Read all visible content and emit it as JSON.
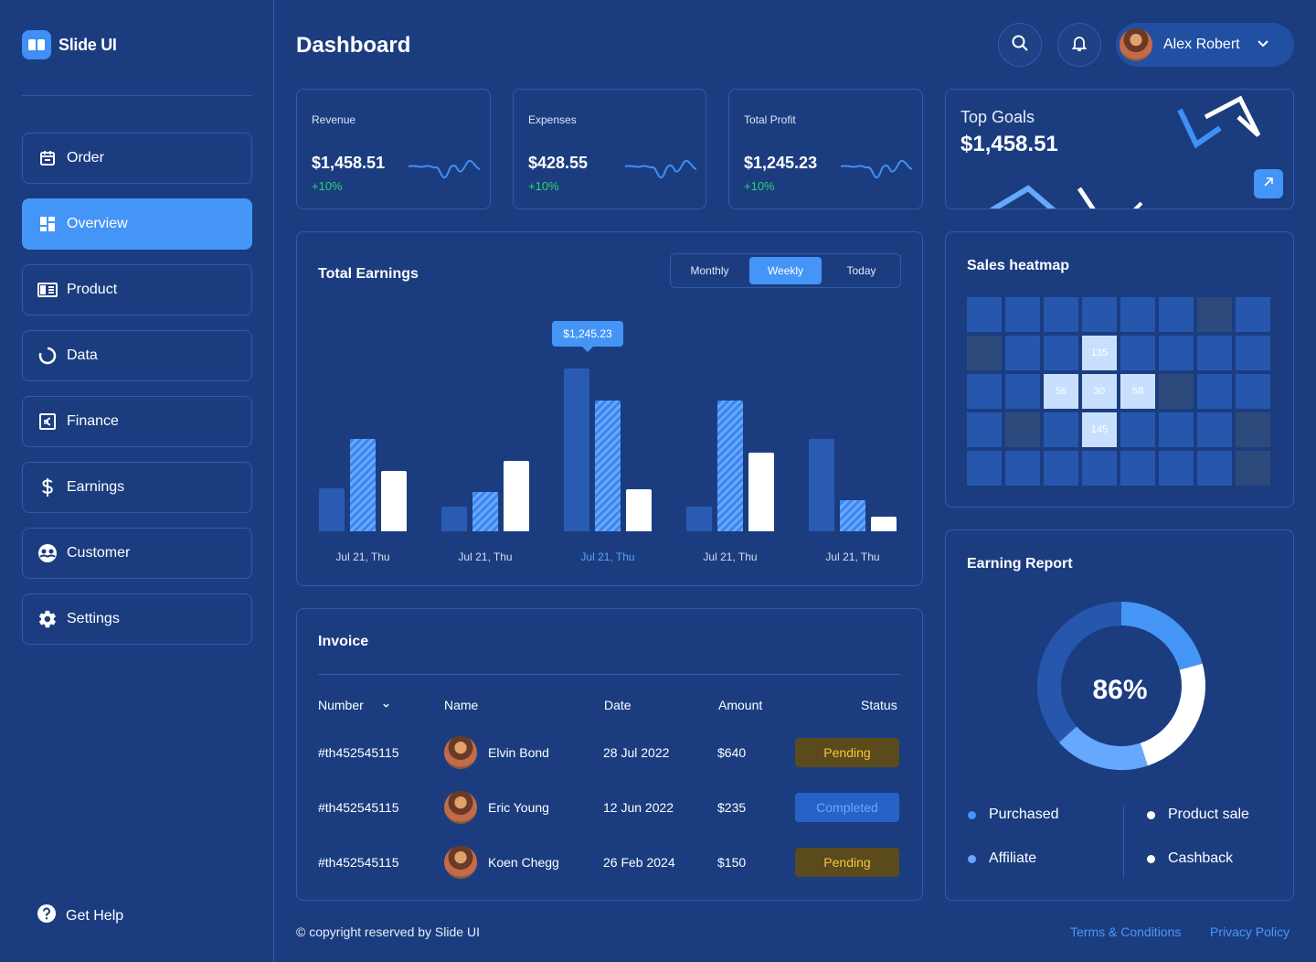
{
  "app": {
    "name": "Slide UI",
    "page_title": "Dashboard"
  },
  "sidebar": {
    "items": [
      {
        "label": "Order",
        "icon": "calendar-icon"
      },
      {
        "label": "Overview",
        "icon": "grid-icon",
        "active": true
      },
      {
        "label": "Product",
        "icon": "product-icon"
      },
      {
        "label": "Data",
        "icon": "chart-ring-icon"
      },
      {
        "label": "Finance",
        "icon": "euro-icon"
      },
      {
        "label": "Earnings",
        "icon": "dollar-icon"
      },
      {
        "label": "Customer",
        "icon": "customer-icon"
      },
      {
        "label": "Settings",
        "icon": "gear-icon"
      }
    ],
    "help_label": "Get Help"
  },
  "header": {
    "user_name": "Alex Robert"
  },
  "stats": [
    {
      "label": "Revenue",
      "value": "$1,458.51",
      "change": "+10%"
    },
    {
      "label": "Expenses",
      "value": "$428.55",
      "change": "+10%"
    },
    {
      "label": "Total Profit",
      "value": "$1,245.23",
      "change": "+10%"
    }
  ],
  "goals": {
    "title": "Top Goals",
    "value": "$1,458.51"
  },
  "earnings": {
    "title": "Total Earnings",
    "tabs": [
      "Monthly",
      "Weekly",
      "Today"
    ],
    "active_tab": "Weekly",
    "tooltip": "$1,245.23"
  },
  "chart_data": {
    "type": "bar",
    "title": "Total Earnings",
    "categories": [
      "Jul 21, Thu",
      "Jul 21, Thu",
      "Jul 21, Thu",
      "Jul 21, Thu",
      "Jul 21, Thu"
    ],
    "highlight_index": 2,
    "series": [
      {
        "name": "series-1",
        "values": [
          47,
          27,
          178,
          27,
          101
        ]
      },
      {
        "name": "series-2",
        "values": [
          101,
          43,
          143,
          143,
          34
        ]
      },
      {
        "name": "series-3",
        "values": [
          66,
          77,
          46,
          86,
          16
        ]
      }
    ],
    "ylim": [
      0,
      200
    ]
  },
  "heatmap": {
    "title": "Sales heatmap",
    "rows": [
      [
        "m",
        "m",
        "m",
        "m",
        "m",
        "m",
        "d",
        "m"
      ],
      [
        "d",
        "m",
        "m",
        "l:135",
        "m",
        "m",
        "m",
        "m"
      ],
      [
        "m",
        "m",
        "l:56",
        "l:30",
        "l:58",
        "d",
        "m",
        "m"
      ],
      [
        "m",
        "d",
        "m",
        "l:145",
        "m",
        "m",
        "m",
        "d"
      ],
      [
        "m",
        "m",
        "m",
        "m",
        "m",
        "m",
        "m",
        "d"
      ]
    ]
  },
  "invoice": {
    "title": "Invoice",
    "columns": [
      "Number",
      "Name",
      "Date",
      "Amount",
      "Status"
    ],
    "rows": [
      {
        "number": "#th452545115",
        "name": "Elvin Bond",
        "date": "28 Jul 2022",
        "amount": "$640",
        "status": "Pending"
      },
      {
        "number": "#th452545115",
        "name": "Eric Young",
        "date": "12 Jun 2022",
        "amount": "$235",
        "status": "Completed"
      },
      {
        "number": "#th452545115",
        "name": "Koen Chegg",
        "date": "26 Feb 2024",
        "amount": "$150",
        "status": "Pending"
      }
    ]
  },
  "report": {
    "title": "Earning Report",
    "percent": "86%",
    "legend": [
      {
        "label": "Purchased",
        "color": "#4595f7"
      },
      {
        "label": "Product sale",
        "color": "#ffffff"
      },
      {
        "label": "Affiliate",
        "color": "#66a8fb"
      },
      {
        "label": "Cashback",
        "color": "#ffffff"
      }
    ]
  },
  "footer": {
    "copyright": "© copyright reserved by Slide UI",
    "terms": "Terms & Conditions",
    "privacy": "Privacy Policy"
  }
}
